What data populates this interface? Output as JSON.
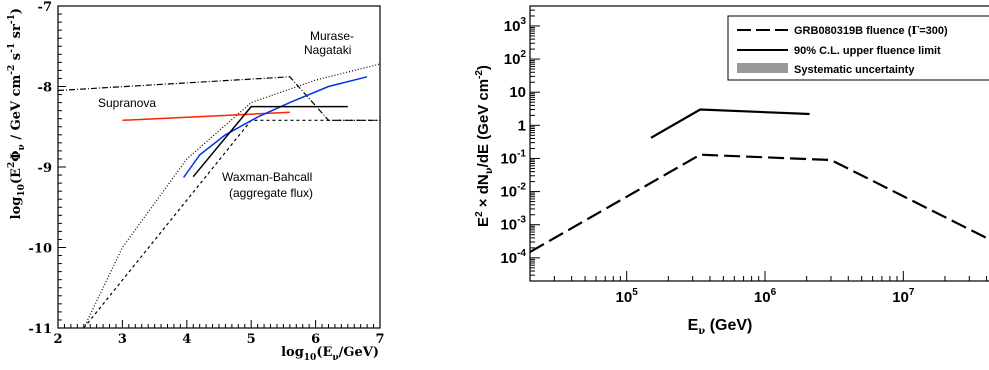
{
  "chart_data": [
    {
      "type": "line",
      "xlabel_parts": [
        "log",
        "10",
        "(E",
        "ν",
        "/GeV)"
      ],
      "ylabel_parts": [
        "log",
        "10",
        "(E",
        "2",
        "Φ",
        "ν",
        " / GeV cm",
        "-2",
        " s",
        "-1",
        " sr",
        "-1",
        ")"
      ],
      "xlim": [
        2,
        7
      ],
      "ylim": [
        -11,
        -7
      ],
      "xticks": [
        "2",
        "3",
        "4",
        "5",
        "6",
        "7"
      ],
      "yticks": [
        "-11",
        "-10",
        "-9",
        "-8",
        "-7"
      ],
      "annotations": {
        "murase_line1": "Murase-",
        "murase_line2": "Nagataki",
        "supranova": "Supranova",
        "waxman_line1": "Waxman-Bahcall",
        "waxman_line2": "(aggregate flux)"
      },
      "series": [
        {
          "style": "dashdot",
          "color": "#000000",
          "x": [
            2.0,
            5.6,
            6.2,
            7.0
          ],
          "y": [
            -8.05,
            -7.88,
            -8.42,
            -8.42
          ]
        },
        {
          "style": "dotted",
          "color": "#000000",
          "x": [
            2.4,
            3.0,
            4.0,
            5.0,
            6.0,
            7.0
          ],
          "y": [
            -11.0,
            -10.0,
            -8.9,
            -8.2,
            -7.92,
            -7.72
          ]
        },
        {
          "style": "dashed",
          "color": "#000000",
          "x": [
            2.4,
            5.0,
            7.0
          ],
          "y": [
            -11.0,
            -8.42,
            -8.42
          ]
        },
        {
          "style": "solid",
          "color": "#ff2200",
          "x": [
            3.0,
            5.6
          ],
          "y": [
            -8.42,
            -8.32
          ]
        },
        {
          "style": "solid",
          "color": "#0033ee",
          "x": [
            3.95,
            4.2,
            4.6,
            5.1,
            5.6,
            6.2,
            6.8
          ],
          "y": [
            -9.13,
            -8.85,
            -8.6,
            -8.38,
            -8.2,
            -8.0,
            -7.88
          ]
        },
        {
          "style": "solid",
          "color": "#000000",
          "x": [
            4.1,
            5.0,
            6.5
          ],
          "y": [
            -9.12,
            -8.25,
            -8.25
          ]
        }
      ]
    },
    {
      "type": "line",
      "xscale": "log",
      "yscale": "log",
      "xlabel_parts": [
        "E",
        "ν",
        " (GeV)"
      ],
      "ylabel_parts": [
        "E",
        "2",
        " × dN",
        "ν",
        "/dE (GeV cm",
        "-2",
        ")"
      ],
      "xlim": [
        20000,
        50000000
      ],
      "ylim": [
        2e-05,
        4000
      ],
      "xticks": [
        {
          "base": "10",
          "exp": "5"
        },
        {
          "base": "10",
          "exp": "6"
        },
        {
          "base": "10",
          "exp": "7"
        }
      ],
      "yticks": [
        {
          "value": 1000,
          "base": "10",
          "exp": "3"
        },
        {
          "value": 100,
          "base": "10",
          "exp": "2"
        },
        {
          "value": 10,
          "base": "10",
          "exp": ""
        },
        {
          "value": 1,
          "base": "1",
          "exp": ""
        },
        {
          "value": 0.1,
          "base": "10",
          "exp": "-1"
        },
        {
          "value": 0.01,
          "base": "10",
          "exp": "-2"
        },
        {
          "value": 0.001,
          "base": "10",
          "exp": "-3"
        },
        {
          "value": 0.0001,
          "base": "10",
          "exp": "-4"
        }
      ],
      "legend": {
        "position": "top-right",
        "entries": [
          {
            "prefix": "GRB080319B fluence (",
            "greek": "Γ",
            "suffix": "=300)",
            "style": "dashed"
          },
          {
            "prefix": "90% C.L. upper fluence limit",
            "greek": "",
            "suffix": "",
            "style": "solid"
          },
          {
            "prefix": "Systematic uncertainty",
            "greek": "",
            "suffix": "",
            "style": "box"
          }
        ]
      },
      "colors": {
        "systematic_box": "#999999"
      },
      "series": [
        {
          "name": "GRB080319B fluence (Γ=300)",
          "style": "dashed",
          "x": [
            20000,
            340000,
            3000000,
            50000000
          ],
          "y": [
            0.00015,
            0.13,
            0.09,
            0.00025
          ]
        },
        {
          "name": "90% C.L. upper fluence limit",
          "style": "solid",
          "x": [
            150000,
            340000,
            2100000
          ],
          "y": [
            0.42,
            3.0,
            2.2
          ]
        }
      ]
    }
  ]
}
